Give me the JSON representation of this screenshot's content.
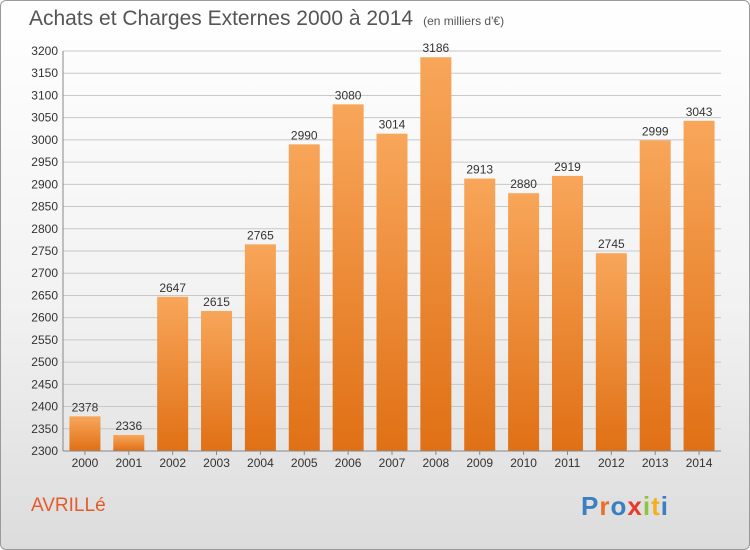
{
  "header": {
    "title": "Achats et Charges Externes 2000 à 2014",
    "unit": "(en milliers d'€)"
  },
  "footer": {
    "place": "AVRILLé",
    "logo": "Proxiti"
  },
  "colors": {
    "bar_top": "#f8a65a",
    "bar_bottom": "#e07015",
    "title": "#555555",
    "place": "#e55a2b"
  },
  "chart_data": {
    "type": "bar",
    "title": "Achats et Charges Externes 2000 à 2014",
    "subtitle": "(en milliers d'€)",
    "categories": [
      "2000",
      "2001",
      "2002",
      "2003",
      "2004",
      "2005",
      "2006",
      "2007",
      "2008",
      "2009",
      "2010",
      "2011",
      "2012",
      "2013",
      "2014"
    ],
    "values": [
      2378,
      2336,
      2647,
      2615,
      2765,
      2990,
      3080,
      3014,
      3186,
      2913,
      2880,
      2919,
      2745,
      2999,
      3043
    ],
    "ylim": [
      2300,
      3200
    ],
    "yticks": [
      2300,
      2350,
      2400,
      2450,
      2500,
      2550,
      2600,
      2650,
      2700,
      2750,
      2800,
      2850,
      2900,
      2950,
      3000,
      3050,
      3100,
      3150,
      3200
    ],
    "grid": true,
    "legend": "none"
  }
}
